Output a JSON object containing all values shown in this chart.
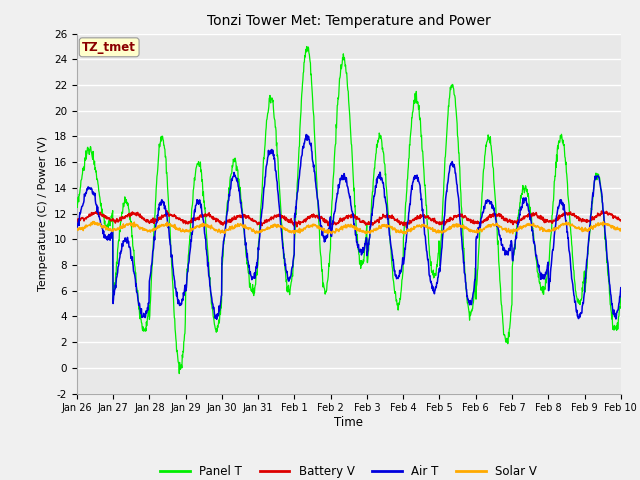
{
  "title": "Tonzi Tower Met: Temperature and Power",
  "xlabel": "Time",
  "ylabel": "Temperature (C) / Power (V)",
  "ylim": [
    -2,
    26
  ],
  "yticks": [
    -2,
    0,
    2,
    4,
    6,
    8,
    10,
    12,
    14,
    16,
    18,
    20,
    22,
    24,
    26
  ],
  "xtick_labels": [
    "Jan 26",
    "Jan 27",
    "Jan 28",
    "Jan 29",
    "Jan 30",
    "Jan 31",
    "Feb 1",
    "Feb 2",
    "Feb 3",
    "Feb 4",
    "Feb 5",
    "Feb 6",
    "Feb 7",
    "Feb 8",
    "Feb 9",
    "Feb 10"
  ],
  "annotation_text": "TZ_tmet",
  "annotation_color": "#8b0000",
  "annotation_bg": "#ffffcc",
  "colors": {
    "Panel T": "#00ee00",
    "Battery V": "#dd0000",
    "Air T": "#0000dd",
    "Solar V": "#ffaa00"
  },
  "bg_color": "#e8e8e8",
  "grid_color": "#ffffff",
  "n_days": 15,
  "panel_peaks": [
    17,
    13,
    18,
    16,
    16,
    21,
    25,
    24,
    18,
    21,
    22,
    18,
    14,
    18,
    15
  ],
  "panel_troughs": [
    11,
    3,
    0,
    3,
    6,
    6,
    6,
    8,
    5,
    7,
    4,
    2,
    6,
    5,
    3
  ],
  "air_peaks": [
    14,
    10,
    13,
    13,
    15,
    17,
    18,
    15,
    15,
    15,
    16,
    13,
    13,
    13,
    15
  ],
  "air_troughs": [
    10,
    4,
    5,
    4,
    7,
    7,
    10,
    9,
    7,
    6,
    5,
    9,
    7,
    4,
    4
  ],
  "battery_base": 11.5,
  "solar_base": 11.0
}
